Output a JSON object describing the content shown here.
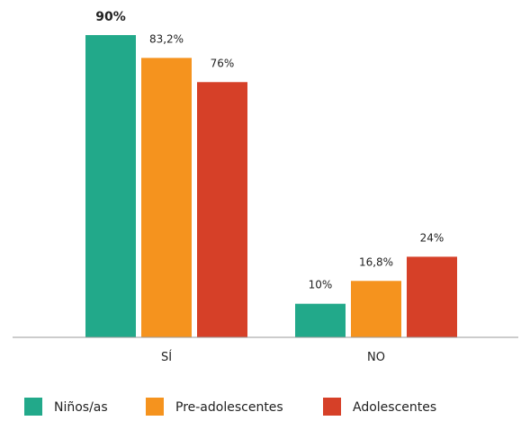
{
  "chart_data": {
    "type": "bar",
    "title": "",
    "xlabel": "",
    "ylabel": "",
    "categories": [
      "SÍ",
      "NO"
    ],
    "ylim": [
      0,
      100
    ],
    "grid": false,
    "legend_position": "bottom-left",
    "series": [
      {
        "name": "Niños/as",
        "color": "#22a98a",
        "values": [
          90,
          10
        ],
        "labels": [
          "90%",
          "10%"
        ],
        "highlight": [
          true,
          false
        ]
      },
      {
        "name": "Pre-adolescentes",
        "color": "#f5931e",
        "values": [
          83.2,
          16.8
        ],
        "labels": [
          "83,2%",
          "16,8%"
        ],
        "highlight": [
          false,
          false
        ]
      },
      {
        "name": "Adolescentes",
        "color": "#d64028",
        "values": [
          76,
          24
        ],
        "labels": [
          "76%",
          "24%"
        ],
        "highlight": [
          false,
          false
        ]
      }
    ]
  }
}
